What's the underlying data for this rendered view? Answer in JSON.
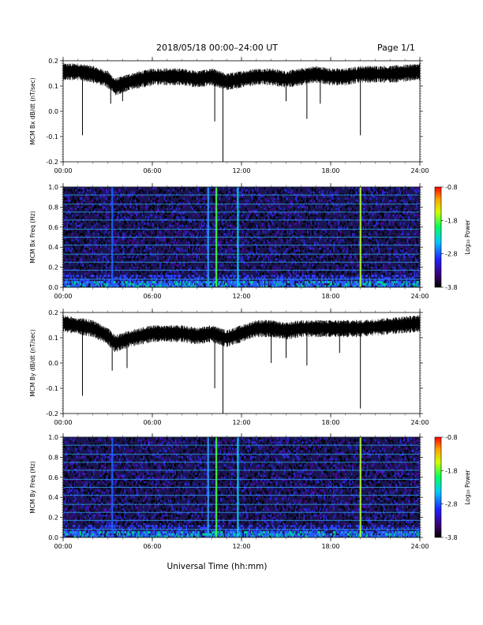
{
  "header": {
    "title": "2018/05/18   00:00–24:00 UT",
    "page": "Page 1/1"
  },
  "xlabel": "Universal Time (hh:mm)",
  "colors": {
    "trace": "#000000",
    "background": "#ffffff"
  },
  "chart_data": [
    {
      "type": "line",
      "ylabel": "MCM Bx dB/dt (nT/sec)",
      "xlim": [
        0,
        24
      ],
      "ylim": [
        -0.2,
        0.2
      ],
      "xticks": [
        "00:00",
        "06:00",
        "12:00",
        "18:00",
        "24:00"
      ],
      "yticks": [
        "0.2",
        "0.1",
        "0.0",
        "-0.1",
        "-0.2"
      ],
      "baseline": [
        [
          0.0,
          0.16
        ],
        [
          1.0,
          0.16
        ],
        [
          2.0,
          0.15
        ],
        [
          3.0,
          0.13
        ],
        [
          3.5,
          0.1
        ],
        [
          4.5,
          0.12
        ],
        [
          6.0,
          0.14
        ],
        [
          8.0,
          0.14
        ],
        [
          9.0,
          0.13
        ],
        [
          10.0,
          0.14
        ],
        [
          11.0,
          0.12
        ],
        [
          12.0,
          0.13
        ],
        [
          13.0,
          0.14
        ],
        [
          14.0,
          0.14
        ],
        [
          15.0,
          0.13
        ],
        [
          16.0,
          0.14
        ],
        [
          17.0,
          0.15
        ],
        [
          18.0,
          0.14
        ],
        [
          19.0,
          0.14
        ],
        [
          20.0,
          0.15
        ],
        [
          22.0,
          0.15
        ],
        [
          24.0,
          0.16
        ]
      ],
      "spikes": [
        [
          1.3,
          -0.095
        ],
        [
          3.2,
          0.03
        ],
        [
          4.0,
          0.04
        ],
        [
          10.2,
          -0.04
        ],
        [
          10.75,
          -0.2
        ],
        [
          15.0,
          0.04
        ],
        [
          16.4,
          -0.03
        ],
        [
          17.3,
          0.03
        ],
        [
          20.0,
          -0.095
        ]
      ]
    },
    {
      "type": "heatmap",
      "ylabel": "MCM Bx Freq (Hz)",
      "xlim": [
        0,
        24
      ],
      "ylim": [
        0.0,
        1.0
      ],
      "xticks": [
        "00:00",
        "06:00",
        "12:00",
        "18:00",
        "24:00"
      ],
      "yticks": [
        "1.0",
        "0.8",
        "0.6",
        "0.4",
        "0.2",
        "0.0"
      ],
      "colorbar": {
        "label": "Log₁₀ Power",
        "range": [
          -3.8,
          -0.8
        ],
        "ticks": [
          "-0.8",
          "-1.8",
          "-2.8",
          "-3.8"
        ]
      },
      "colormap": [
        "#000000",
        "#3a0070",
        "#2020ff",
        "#00c8ff",
        "#00ff60",
        "#d0ff00",
        "#ffa000",
        "#ff0000"
      ],
      "harmonic_lines_hz": [
        0.08,
        0.17,
        0.25,
        0.33,
        0.42,
        0.5,
        0.58,
        0.67,
        0.75,
        0.83,
        0.92,
        1.0
      ],
      "vertical_features": [
        {
          "t": 10.3,
          "color": "#40ff40",
          "level": "-1.8"
        },
        {
          "t": 11.75,
          "color": "#00d8ff",
          "level": "-2.4"
        },
        {
          "t": 20.0,
          "color": "#b0ff30",
          "level": "-2.0"
        },
        {
          "t": 9.75,
          "color": "#2aa0ff",
          "level": "-2.8"
        },
        {
          "t": 3.3,
          "color": "#2060ff",
          "level": "-3.0"
        }
      ]
    },
    {
      "type": "line",
      "ylabel": "MCM By dB/dt (nT/sec)",
      "xlim": [
        0,
        24
      ],
      "ylim": [
        -0.2,
        0.2
      ],
      "xticks": [
        "00:00",
        "06:00",
        "12:00",
        "18:00",
        "24:00"
      ],
      "yticks": [
        "0.2",
        "0.1",
        "0.0",
        "-0.1",
        "-0.2"
      ],
      "baseline": [
        [
          0.0,
          0.16
        ],
        [
          1.0,
          0.15
        ],
        [
          2.0,
          0.14
        ],
        [
          3.0,
          0.11
        ],
        [
          3.5,
          0.08
        ],
        [
          4.5,
          0.1
        ],
        [
          6.0,
          0.12
        ],
        [
          8.0,
          0.12
        ],
        [
          9.0,
          0.11
        ],
        [
          10.0,
          0.12
        ],
        [
          11.0,
          0.1
        ],
        [
          12.0,
          0.12
        ],
        [
          13.0,
          0.14
        ],
        [
          14.0,
          0.14
        ],
        [
          15.0,
          0.13
        ],
        [
          16.0,
          0.14
        ],
        [
          17.0,
          0.14
        ],
        [
          18.0,
          0.14
        ],
        [
          19.0,
          0.14
        ],
        [
          20.0,
          0.14
        ],
        [
          22.0,
          0.15
        ],
        [
          24.0,
          0.16
        ]
      ],
      "spikes": [
        [
          1.3,
          -0.13
        ],
        [
          3.3,
          -0.03
        ],
        [
          4.3,
          -0.02
        ],
        [
          10.2,
          -0.1
        ],
        [
          10.75,
          -0.2
        ],
        [
          14.0,
          0.0
        ],
        [
          15.0,
          0.02
        ],
        [
          16.4,
          -0.01
        ],
        [
          18.6,
          0.04
        ],
        [
          20.0,
          -0.18
        ]
      ]
    },
    {
      "type": "heatmap",
      "ylabel": "MCM By Freq (Hz)",
      "xlim": [
        0,
        24
      ],
      "ylim": [
        0.0,
        1.0
      ],
      "xticks": [
        "00:00",
        "06:00",
        "12:00",
        "18:00",
        "24:00"
      ],
      "yticks": [
        "1.0",
        "0.8",
        "0.6",
        "0.4",
        "0.2",
        "0.0"
      ],
      "colorbar": {
        "label": "Log₁₀ Power",
        "range": [
          -3.8,
          -0.8
        ],
        "ticks": [
          "-0.8",
          "-1.8",
          "-2.8",
          "-3.8"
        ]
      },
      "colormap": [
        "#000000",
        "#3a0070",
        "#2020ff",
        "#00c8ff",
        "#00ff60",
        "#d0ff00",
        "#ffa000",
        "#ff0000"
      ],
      "harmonic_lines_hz": [
        0.08,
        0.17,
        0.25,
        0.33,
        0.42,
        0.5,
        0.58,
        0.67,
        0.75,
        0.83,
        0.92,
        1.0
      ],
      "vertical_features": [
        {
          "t": 10.3,
          "color": "#40ff40",
          "level": "-1.8"
        },
        {
          "t": 11.75,
          "color": "#00d8ff",
          "level": "-2.4"
        },
        {
          "t": 20.0,
          "color": "#b0ff30",
          "level": "-2.0"
        },
        {
          "t": 9.75,
          "color": "#2aa0ff",
          "level": "-2.8"
        },
        {
          "t": 3.3,
          "color": "#2060ff",
          "level": "-3.0"
        }
      ]
    }
  ]
}
